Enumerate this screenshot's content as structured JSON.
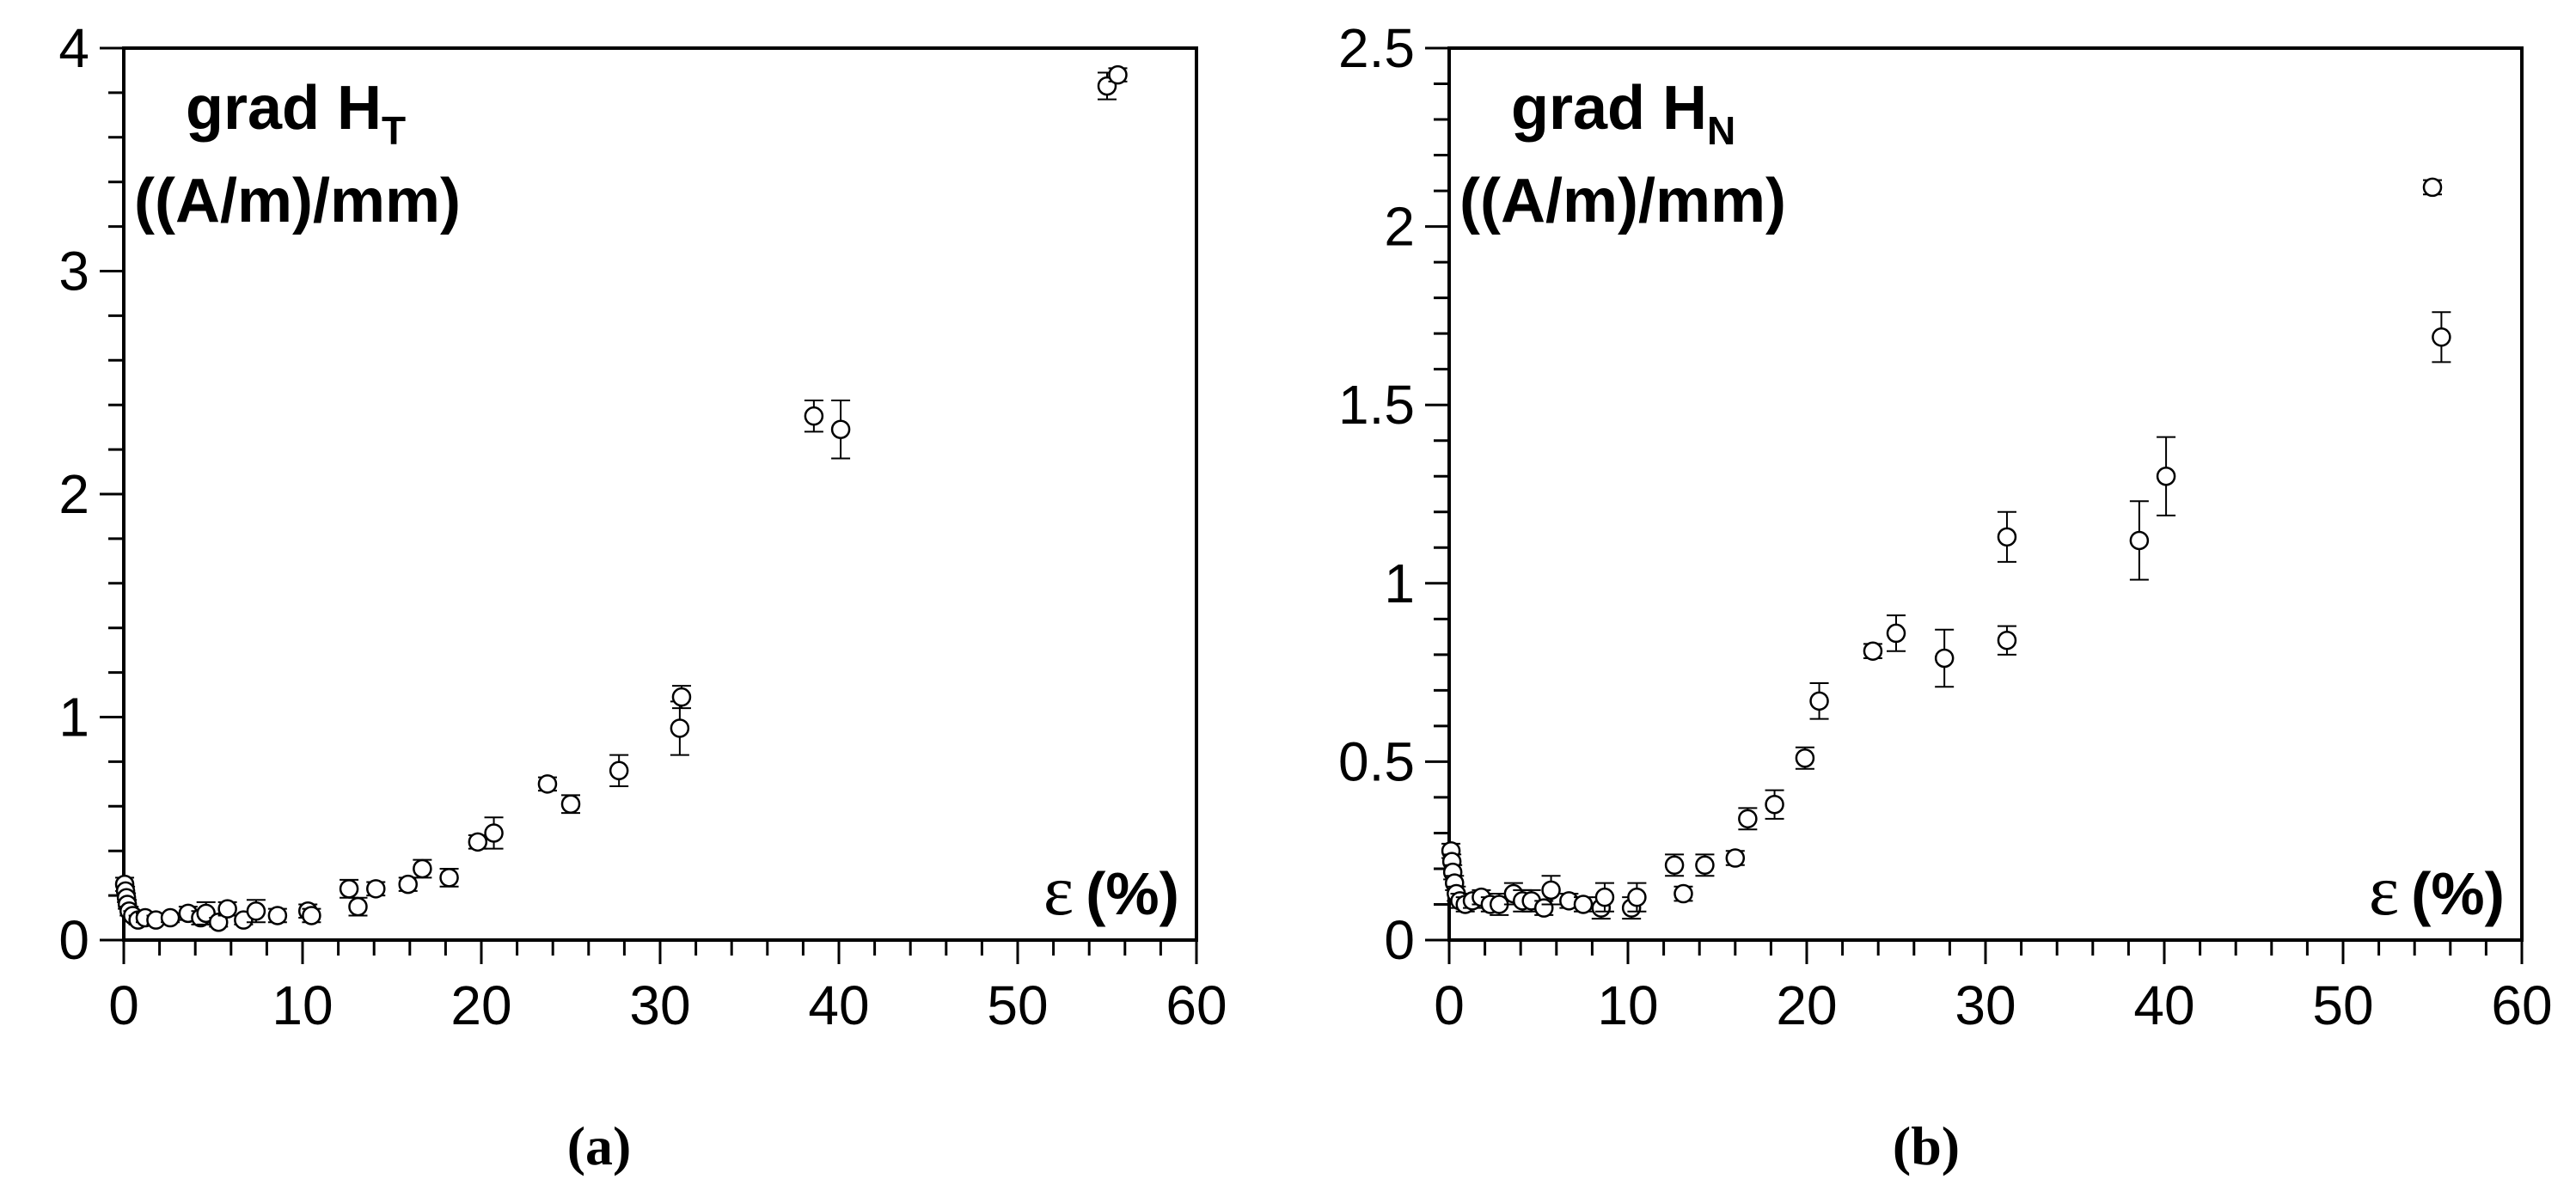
{
  "chart_data": [
    {
      "type": "scatter",
      "panel_label": "(a)",
      "title_line1": "grad H",
      "title_subscript": "T",
      "units": "((A/m)/mm)",
      "xlabel_symbol": "ε",
      "xlabel_unit": "(%)",
      "xlim": [
        0,
        60
      ],
      "ylim": [
        0,
        4
      ],
      "x_ticks": [
        "0",
        "10",
        "20",
        "30",
        "40",
        "50",
        "60"
      ],
      "y_ticks": [
        "0",
        "1",
        "2",
        "3",
        "4"
      ],
      "grid": false,
      "series": [
        {
          "marker": "open-circle",
          "points": [
            {
              "x": 0.05,
              "y": 0.25,
              "err": 0.03
            },
            {
              "x": 0.1,
              "y": 0.22,
              "err": 0.02
            },
            {
              "x": 0.15,
              "y": 0.19,
              "err": 0.02
            },
            {
              "x": 0.2,
              "y": 0.16,
              "err": 0.02
            },
            {
              "x": 0.3,
              "y": 0.13,
              "err": 0.02
            },
            {
              "x": 0.5,
              "y": 0.11,
              "err": 0.02
            },
            {
              "x": 0.8,
              "y": 0.09,
              "err": 0.02
            },
            {
              "x": 1.2,
              "y": 0.1,
              "err": 0.02
            },
            {
              "x": 1.8,
              "y": 0.09,
              "err": 0.02
            },
            {
              "x": 2.6,
              "y": 0.1,
              "err": 0.02
            },
            {
              "x": 3.6,
              "y": 0.12,
              "err": 0.03
            },
            {
              "x": 4.3,
              "y": 0.1,
              "err": 0.03
            },
            {
              "x": 4.6,
              "y": 0.12,
              "err": 0.05
            },
            {
              "x": 5.3,
              "y": 0.08,
              "err": 0.02
            },
            {
              "x": 5.8,
              "y": 0.14,
              "err": 0.03
            },
            {
              "x": 6.7,
              "y": 0.09,
              "err": 0.02
            },
            {
              "x": 7.4,
              "y": 0.13,
              "err": 0.05
            },
            {
              "x": 8.6,
              "y": 0.11,
              "err": 0.03
            },
            {
              "x": 10.3,
              "y": 0.13,
              "err": 0.03
            },
            {
              "x": 10.5,
              "y": 0.11,
              "err": 0.03
            },
            {
              "x": 12.6,
              "y": 0.23,
              "err": 0.04
            },
            {
              "x": 13.1,
              "y": 0.15,
              "err": 0.04
            },
            {
              "x": 14.1,
              "y": 0.23,
              "err": 0.03
            },
            {
              "x": 15.9,
              "y": 0.25,
              "err": 0.03
            },
            {
              "x": 16.7,
              "y": 0.32,
              "err": 0.04
            },
            {
              "x": 18.2,
              "y": 0.28,
              "err": 0.04
            },
            {
              "x": 19.8,
              "y": 0.44,
              "err": 0.03
            },
            {
              "x": 20.7,
              "y": 0.48,
              "err": 0.07
            },
            {
              "x": 23.7,
              "y": 0.7,
              "err": 0.03
            },
            {
              "x": 25.0,
              "y": 0.61,
              "err": 0.04
            },
            {
              "x": 27.7,
              "y": 0.76,
              "err": 0.07
            },
            {
              "x": 31.1,
              "y": 0.95,
              "err": 0.12
            },
            {
              "x": 31.2,
              "y": 1.09,
              "err": 0.05
            },
            {
              "x": 38.6,
              "y": 2.35,
              "err": 0.07
            },
            {
              "x": 40.1,
              "y": 2.29,
              "err": 0.13
            },
            {
              "x": 55.0,
              "y": 3.83,
              "err": 0.06
            },
            {
              "x": 55.6,
              "y": 3.88,
              "err": 0.03
            }
          ]
        }
      ]
    },
    {
      "type": "scatter",
      "panel_label": "(b)",
      "title_line1": "grad H",
      "title_subscript": "N",
      "units": "((A/m)/mm)",
      "xlabel_symbol": "ε",
      "xlabel_unit": "(%)",
      "xlim": [
        0,
        60
      ],
      "ylim": [
        0,
        2.5
      ],
      "x_ticks": [
        "0",
        "10",
        "20",
        "30",
        "40",
        "50",
        "60"
      ],
      "y_ticks": [
        "0",
        "0.5",
        "1",
        "1.5",
        "2",
        "2.5"
      ],
      "grid": false,
      "series": [
        {
          "marker": "open-circle",
          "points": [
            {
              "x": 0.1,
              "y": 0.25,
              "err": 0.02
            },
            {
              "x": 0.15,
              "y": 0.22,
              "err": 0.02
            },
            {
              "x": 0.2,
              "y": 0.19,
              "err": 0.02
            },
            {
              "x": 0.3,
              "y": 0.16,
              "err": 0.02
            },
            {
              "x": 0.4,
              "y": 0.13,
              "err": 0.02
            },
            {
              "x": 0.6,
              "y": 0.11,
              "err": 0.02
            },
            {
              "x": 0.9,
              "y": 0.1,
              "err": 0.02
            },
            {
              "x": 1.3,
              "y": 0.11,
              "err": 0.02
            },
            {
              "x": 1.8,
              "y": 0.12,
              "err": 0.02
            },
            {
              "x": 2.3,
              "y": 0.1,
              "err": 0.02
            },
            {
              "x": 2.8,
              "y": 0.1,
              "err": 0.03
            },
            {
              "x": 3.6,
              "y": 0.13,
              "err": 0.03
            },
            {
              "x": 4.1,
              "y": 0.11,
              "err": 0.03
            },
            {
              "x": 4.6,
              "y": 0.11,
              "err": 0.03
            },
            {
              "x": 5.3,
              "y": 0.09,
              "err": 0.02
            },
            {
              "x": 5.7,
              "y": 0.14,
              "err": 0.04
            },
            {
              "x": 6.7,
              "y": 0.11,
              "err": 0.02
            },
            {
              "x": 7.5,
              "y": 0.1,
              "err": 0.02
            },
            {
              "x": 8.5,
              "y": 0.09,
              "err": 0.03
            },
            {
              "x": 8.7,
              "y": 0.12,
              "err": 0.04
            },
            {
              "x": 10.2,
              "y": 0.09,
              "err": 0.03
            },
            {
              "x": 10.5,
              "y": 0.12,
              "err": 0.04
            },
            {
              "x": 12.6,
              "y": 0.21,
              "err": 0.03
            },
            {
              "x": 13.1,
              "y": 0.13,
              "err": 0.02
            },
            {
              "x": 14.3,
              "y": 0.21,
              "err": 0.03
            },
            {
              "x": 16.0,
              "y": 0.23,
              "err": 0.02
            },
            {
              "x": 16.7,
              "y": 0.34,
              "err": 0.03
            },
            {
              "x": 18.2,
              "y": 0.38,
              "err": 0.04
            },
            {
              "x": 19.9,
              "y": 0.51,
              "err": 0.03
            },
            {
              "x": 20.7,
              "y": 0.67,
              "err": 0.05
            },
            {
              "x": 23.7,
              "y": 0.81,
              "err": 0.02
            },
            {
              "x": 25.0,
              "y": 0.86,
              "err": 0.05
            },
            {
              "x": 27.7,
              "y": 0.79,
              "err": 0.08
            },
            {
              "x": 31.2,
              "y": 1.13,
              "err": 0.07
            },
            {
              "x": 31.2,
              "y": 0.84,
              "err": 0.04
            },
            {
              "x": 38.6,
              "y": 1.12,
              "err": 0.11
            },
            {
              "x": 40.1,
              "y": 1.3,
              "err": 0.11
            },
            {
              "x": 55.0,
              "y": 2.11,
              "err": 0.02
            },
            {
              "x": 55.5,
              "y": 1.69,
              "err": 0.07
            }
          ]
        }
      ]
    }
  ]
}
